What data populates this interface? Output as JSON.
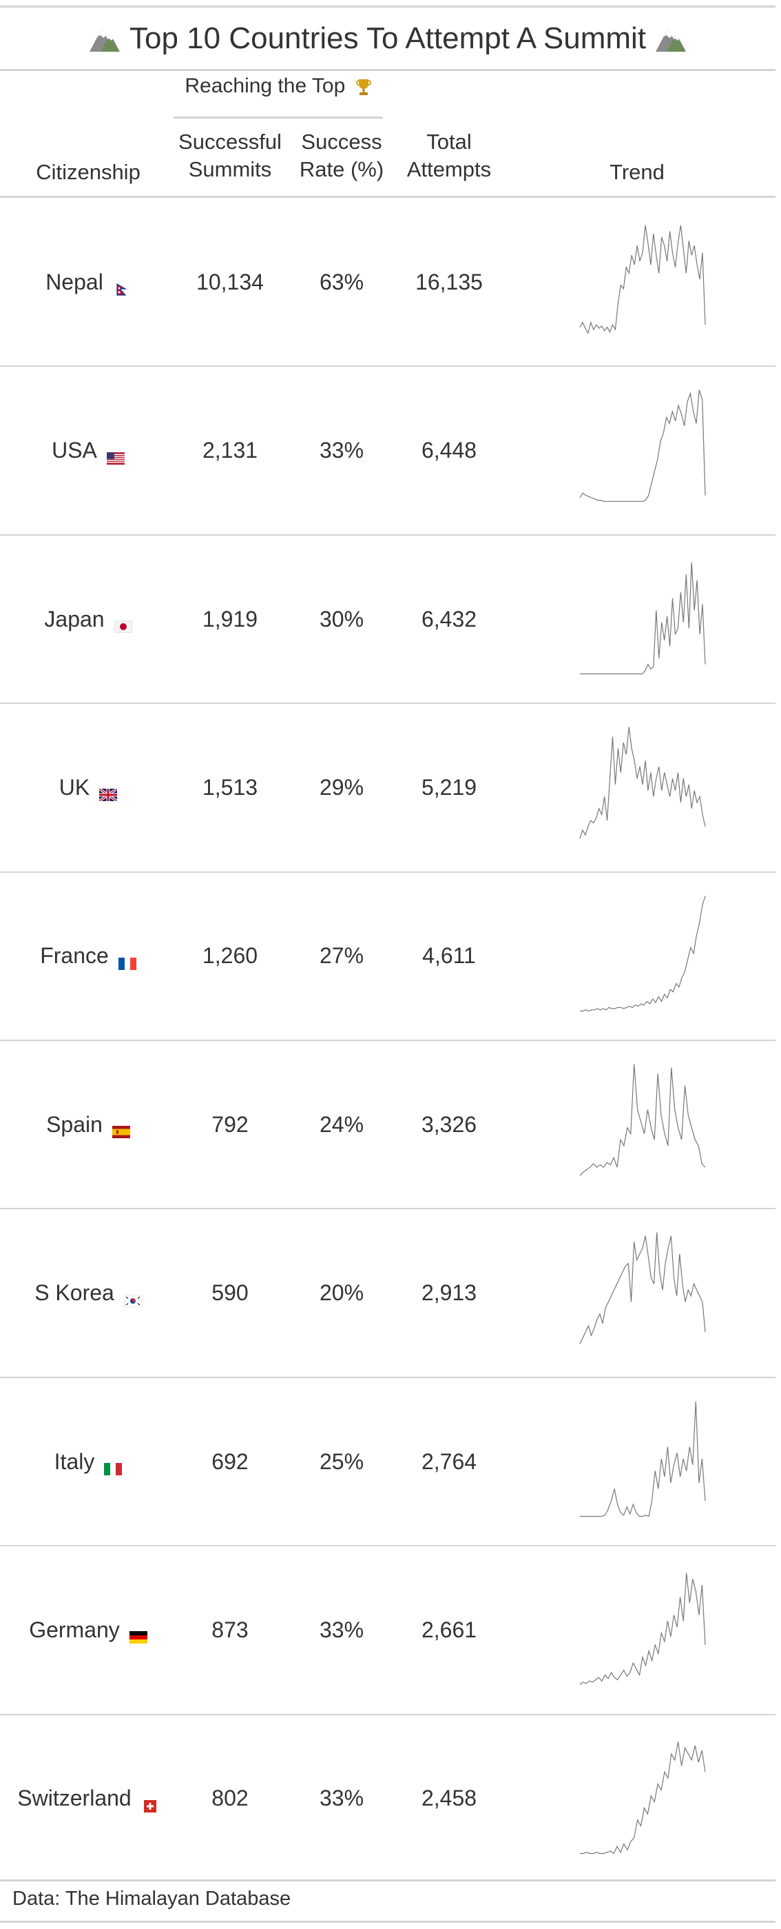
{
  "title": "Top 10 Countries To Attempt A Summit",
  "spanner_label": "Reaching the Top",
  "columns": {
    "citizenship": "Citizenship",
    "summits_line1": "Successful",
    "summits_line2": "Summits",
    "rate_line1": "Success",
    "rate_line2": "Rate (%)",
    "attempts_line1": "Total",
    "attempts_line2": "Attempts",
    "trend": "Trend"
  },
  "icons": {
    "title": "mountain-icon",
    "spanner": "trophy-icon"
  },
  "footer": "Data: The Himalayan Database",
  "colors": {
    "text": "#333333",
    "rules": "#d3d3d3",
    "sparkline": "#777777"
  },
  "chart_data": {
    "type": "table",
    "rows": [
      {
        "country": "Nepal",
        "flag": "nepal-flag-icon",
        "summits": "10,134",
        "rate": "63%",
        "attempts": "16,135",
        "trend": [
          0.1,
          0.14,
          0.09,
          0.05,
          0.14,
          0.08,
          0.12,
          0.09,
          0.11,
          0.07,
          0.1,
          0.06,
          0.12,
          0.08,
          0.3,
          0.45,
          0.42,
          0.6,
          0.55,
          0.7,
          0.62,
          0.78,
          0.65,
          0.72,
          0.95,
          0.8,
          0.62,
          0.88,
          0.7,
          0.55,
          0.85,
          0.78,
          0.65,
          0.9,
          0.72,
          0.6,
          0.8,
          0.95,
          0.75,
          0.55,
          0.82,
          0.7,
          0.78,
          0.62,
          0.5,
          0.72,
          0.12
        ]
      },
      {
        "country": "USA",
        "flag": "usa-flag-icon",
        "summits": "2,131",
        "rate": "33%",
        "attempts": "6,448",
        "trend": [
          0.08,
          0.12,
          0.1,
          0.09,
          0.08,
          0.07,
          0.06,
          0.06,
          0.05,
          0.05,
          0.05,
          0.05,
          0.05,
          0.05,
          0.05,
          0.05,
          0.05,
          0.05,
          0.05,
          0.05,
          0.05,
          0.05,
          0.06,
          0.1,
          0.2,
          0.3,
          0.4,
          0.55,
          0.62,
          0.75,
          0.7,
          0.8,
          0.72,
          0.85,
          0.78,
          0.68,
          0.88,
          0.95,
          0.8,
          0.7,
          0.98,
          0.9,
          0.1
        ]
      },
      {
        "country": "Japan",
        "flag": "japan-flag-icon",
        "summits": "1,919",
        "rate": "30%",
        "attempts": "6,432",
        "trend": [
          0.02,
          0.02,
          0.02,
          0.02,
          0.02,
          0.02,
          0.02,
          0.02,
          0.02,
          0.02,
          0.02,
          0.02,
          0.02,
          0.02,
          0.02,
          0.02,
          0.02,
          0.02,
          0.02,
          0.02,
          0.02,
          0.02,
          0.02,
          0.02,
          0.05,
          0.1,
          0.06,
          0.08,
          0.55,
          0.15,
          0.45,
          0.3,
          0.5,
          0.25,
          0.65,
          0.35,
          0.4,
          0.7,
          0.45,
          0.85,
          0.4,
          0.95,
          0.55,
          0.8,
          0.35,
          0.6,
          0.1
        ]
      },
      {
        "country": "UK",
        "flag": "uk-flag-icon",
        "summits": "1,513",
        "rate": "29%",
        "attempts": "5,219",
        "trend": [
          0.05,
          0.12,
          0.08,
          0.15,
          0.2,
          0.18,
          0.22,
          0.3,
          0.25,
          0.4,
          0.2,
          0.55,
          0.9,
          0.5,
          0.8,
          0.6,
          0.85,
          0.75,
          0.98,
          0.8,
          0.7,
          0.55,
          0.65,
          0.5,
          0.7,
          0.45,
          0.6,
          0.4,
          0.55,
          0.65,
          0.45,
          0.6,
          0.5,
          0.4,
          0.55,
          0.45,
          0.6,
          0.35,
          0.55,
          0.4,
          0.5,
          0.3,
          0.45,
          0.35,
          0.4,
          0.25,
          0.15
        ]
      },
      {
        "country": "France",
        "flag": "france-flag-icon",
        "summits": "1,260",
        "rate": "27%",
        "attempts": "4,611",
        "trend": [
          0.02,
          0.02,
          0.03,
          0.02,
          0.03,
          0.03,
          0.04,
          0.03,
          0.04,
          0.03,
          0.05,
          0.04,
          0.04,
          0.05,
          0.05,
          0.04,
          0.05,
          0.06,
          0.05,
          0.07,
          0.06,
          0.08,
          0.07,
          0.1,
          0.08,
          0.12,
          0.09,
          0.14,
          0.1,
          0.16,
          0.13,
          0.2,
          0.18,
          0.25,
          0.22,
          0.3,
          0.35,
          0.45,
          0.55,
          0.5,
          0.65,
          0.75,
          0.9,
          0.98
        ]
      },
      {
        "country": "Spain",
        "flag": "spain-flag-icon",
        "summits": "792",
        "rate": "24%",
        "attempts": "3,326",
        "trend": [
          0.05,
          0.08,
          0.1,
          0.12,
          0.15,
          0.12,
          0.14,
          0.12,
          0.16,
          0.14,
          0.2,
          0.12,
          0.35,
          0.3,
          0.45,
          0.4,
          0.98,
          0.6,
          0.5,
          0.4,
          0.6,
          0.45,
          0.35,
          0.9,
          0.55,
          0.4,
          0.3,
          0.95,
          0.6,
          0.45,
          0.35,
          0.8,
          0.55,
          0.45,
          0.35,
          0.3,
          0.15,
          0.12
        ]
      },
      {
        "country": "S Korea",
        "flag": "south-korea-flag-icon",
        "summits": "590",
        "rate": "20%",
        "attempts": "2,913",
        "trend": [
          0.05,
          0.1,
          0.15,
          0.2,
          0.12,
          0.18,
          0.25,
          0.3,
          0.22,
          0.35,
          0.4,
          0.45,
          0.5,
          0.55,
          0.6,
          0.65,
          0.7,
          0.72,
          0.4,
          0.9,
          0.75,
          0.8,
          0.85,
          0.95,
          0.78,
          0.6,
          0.55,
          0.98,
          0.65,
          0.5,
          0.72,
          0.85,
          0.95,
          0.6,
          0.45,
          0.8,
          0.55,
          0.4,
          0.5,
          0.45,
          0.55,
          0.5,
          0.45,
          0.4,
          0.15
        ]
      },
      {
        "country": "Italy",
        "flag": "italy-flag-icon",
        "summits": "692",
        "rate": "25%",
        "attempts": "2,764",
        "trend": [
          0.02,
          0.02,
          0.02,
          0.02,
          0.02,
          0.02,
          0.02,
          0.02,
          0.03,
          0.08,
          0.15,
          0.25,
          0.12,
          0.05,
          0.03,
          0.1,
          0.04,
          0.12,
          0.05,
          0.02,
          0.02,
          0.03,
          0.02,
          0.15,
          0.4,
          0.25,
          0.5,
          0.35,
          0.6,
          0.3,
          0.45,
          0.55,
          0.35,
          0.5,
          0.4,
          0.6,
          0.45,
          0.98,
          0.3,
          0.5,
          0.15
        ]
      },
      {
        "country": "Germany",
        "flag": "germany-flag-icon",
        "summits": "873",
        "rate": "33%",
        "attempts": "2,661",
        "trend": [
          0.02,
          0.04,
          0.03,
          0.05,
          0.04,
          0.06,
          0.08,
          0.05,
          0.1,
          0.07,
          0.12,
          0.08,
          0.06,
          0.1,
          0.14,
          0.09,
          0.12,
          0.2,
          0.15,
          0.1,
          0.25,
          0.18,
          0.3,
          0.22,
          0.35,
          0.28,
          0.45,
          0.38,
          0.55,
          0.42,
          0.6,
          0.5,
          0.75,
          0.55,
          0.95,
          0.7,
          0.9,
          0.8,
          0.6,
          0.85,
          0.35
        ]
      },
      {
        "country": "Switzerland",
        "flag": "switzerland-flag-icon",
        "summits": "802",
        "rate": "33%",
        "attempts": "2,458",
        "trend": [
          0.02,
          0.02,
          0.03,
          0.02,
          0.02,
          0.03,
          0.02,
          0.02,
          0.03,
          0.04,
          0.02,
          0.08,
          0.03,
          0.1,
          0.05,
          0.12,
          0.15,
          0.3,
          0.25,
          0.4,
          0.35,
          0.5,
          0.45,
          0.6,
          0.55,
          0.7,
          0.65,
          0.85,
          0.8,
          0.95,
          0.75,
          0.9,
          0.85,
          0.8,
          0.92,
          0.78,
          0.88,
          0.7
        ]
      }
    ]
  }
}
